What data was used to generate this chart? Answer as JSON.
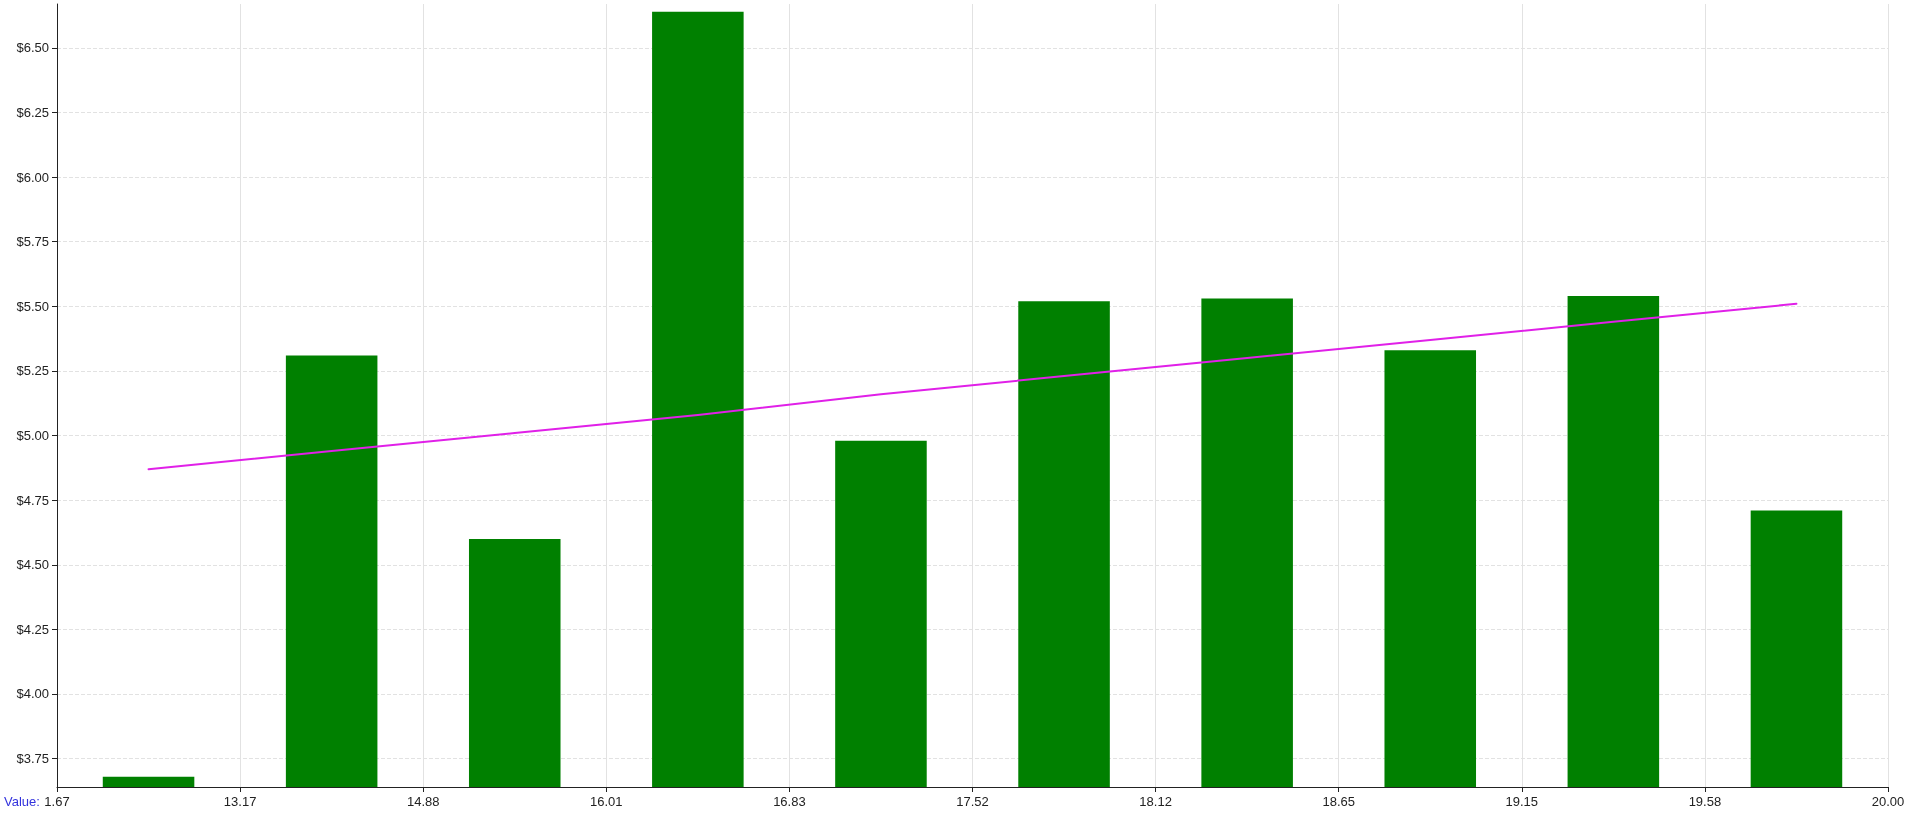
{
  "chart_data": {
    "type": "bar",
    "annotations": [
      "Value:",
      "1.67",
      "13.17",
      "14.88",
      "16.01",
      "16.83",
      "17.52",
      "18.12",
      "18.65",
      "19.15",
      "19.58",
      "20.00"
    ],
    "categories": [
      null,
      null,
      null,
      null,
      null,
      null,
      null,
      null,
      null,
      null
    ],
    "series": [
      {
        "color": "#008000",
        "values": [
          3.68,
          5.31,
          4.6,
          6.64,
          4.98,
          5.52,
          5.53,
          5.33,
          5.54,
          4.71
        ]
      },
      {
        "type": "line",
        "color": "#e020e8",
        "values": [
          4.87,
          4.94,
          5.01,
          5.08,
          5.16,
          5.23,
          5.3,
          5.37,
          5.44,
          5.51
        ]
      }
    ],
    "ylim": [
      3.64,
      6.67
    ],
    "yticks": [
      {
        "value": 3.75,
        "label": "$3.75"
      },
      {
        "value": 4,
        "label": "$4.00"
      },
      {
        "value": 4.25,
        "label": "$4.25"
      },
      {
        "value": 4.5,
        "label": "$4.50"
      },
      {
        "value": 4.75,
        "label": "$4.75"
      },
      {
        "value": 5,
        "label": "$5.00"
      },
      {
        "value": 5.25,
        "label": "$5.25"
      },
      {
        "value": 5.5,
        "label": "$5.50"
      },
      {
        "value": 5.75,
        "label": "$5.75"
      },
      {
        "value": 6,
        "label": "$6.00"
      },
      {
        "value": 6.25,
        "label": "$6.25"
      },
      {
        "value": 6.5,
        "label": "$6.50"
      }
    ],
    "grid": true,
    "marker": "none",
    "line_style": "solid"
  }
}
